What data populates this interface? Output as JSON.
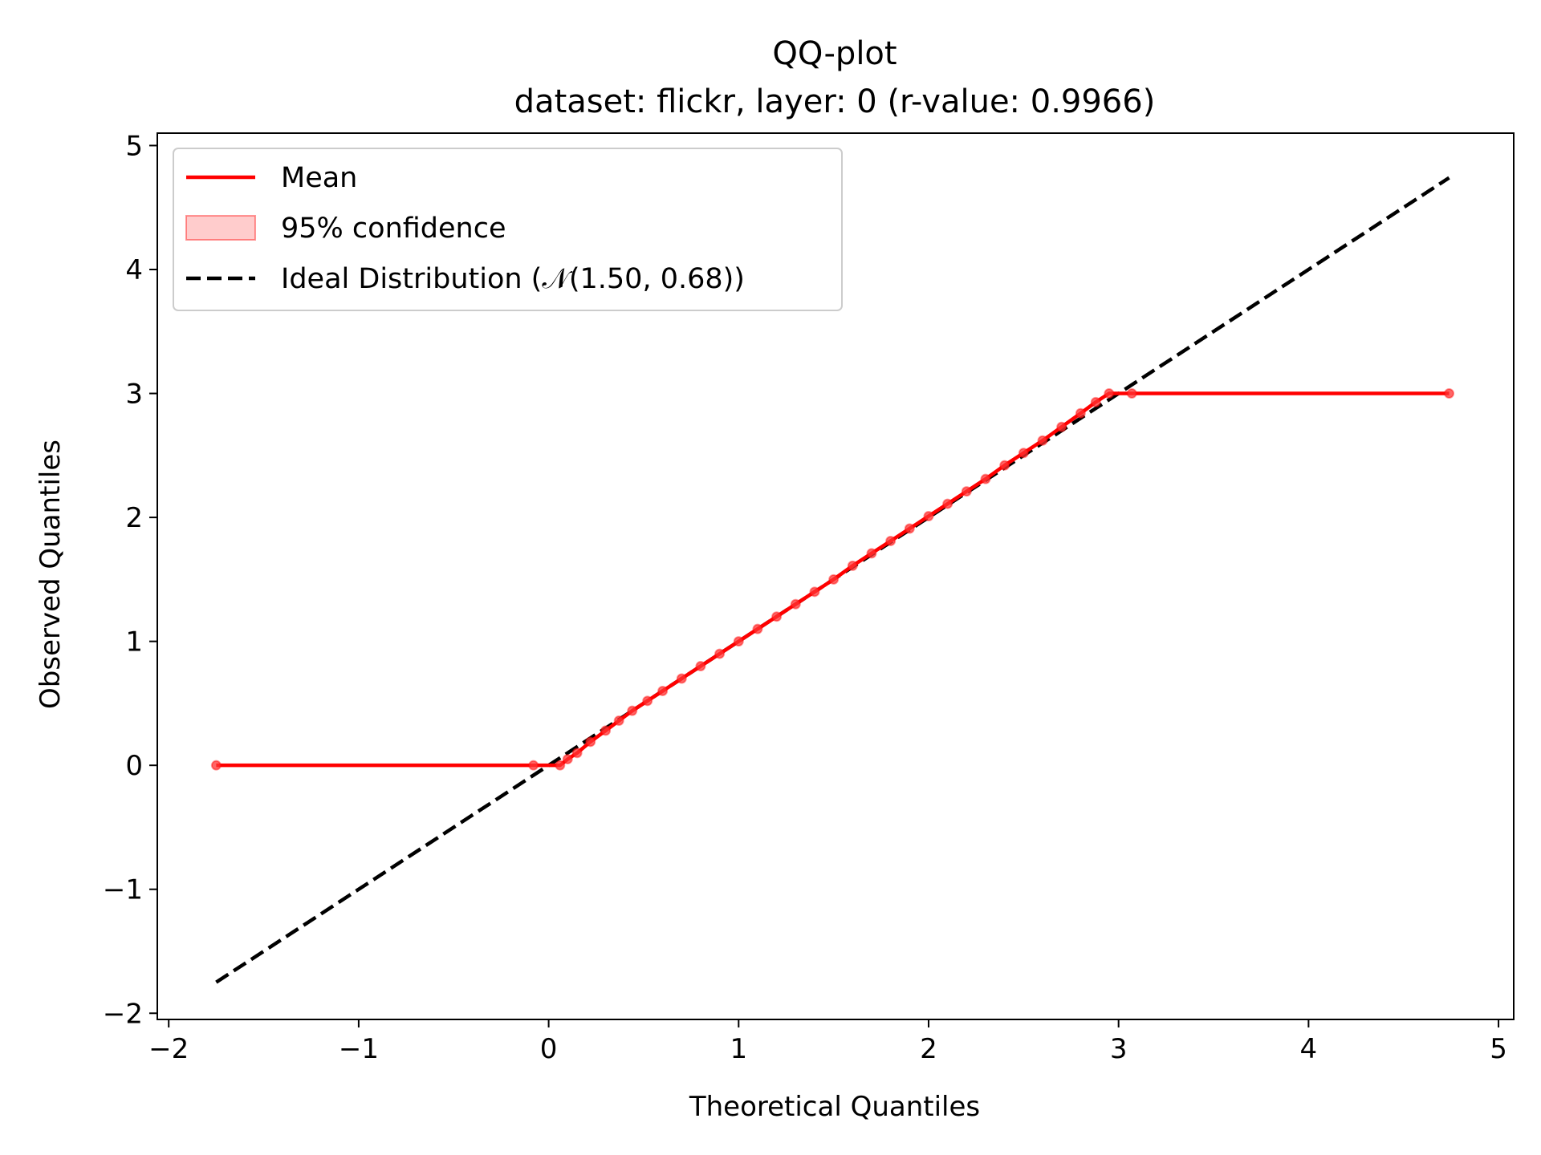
{
  "chart_data": {
    "type": "line",
    "title": "QQ-plot",
    "subtitle": "dataset: flickr, layer: 0 (r-value: 0.9966)",
    "xlabel": "Theoretical Quantiles",
    "ylabel": "Observed Quantiles",
    "xlim": [
      -2.06,
      5.08
    ],
    "ylim": [
      -2.05,
      5.1
    ],
    "xticks": [
      -2,
      -1,
      0,
      1,
      2,
      3,
      4,
      5
    ],
    "yticks": [
      -2,
      -1,
      0,
      1,
      2,
      3,
      4,
      5
    ],
    "xtick_labels": [
      "−2",
      "−1",
      "0",
      "1",
      "2",
      "3",
      "4",
      "5"
    ],
    "ytick_labels": [
      "−2",
      "−1",
      "0",
      "1",
      "2",
      "3",
      "4",
      "5"
    ],
    "grid": false,
    "legend_position": "top-left",
    "legend": [
      {
        "name": "Mean",
        "kind": "line",
        "color": "#ff0000"
      },
      {
        "name": "95% confidence",
        "kind": "patch",
        "color": "#ff0000"
      },
      {
        "name": "Ideal Distribution (𝒩(1.50, 0.68))",
        "kind": "dashed",
        "color": "#000000"
      }
    ],
    "series": [
      {
        "name": "Mean",
        "color": "#ff0000",
        "x": [
          -1.75,
          -0.08,
          0.06,
          0.1,
          0.15,
          0.22,
          0.3,
          0.37,
          0.44,
          0.52,
          0.6,
          0.7,
          0.8,
          0.9,
          1.0,
          1.1,
          1.2,
          1.3,
          1.4,
          1.5,
          1.6,
          1.7,
          1.8,
          1.9,
          2.0,
          2.1,
          2.2,
          2.3,
          2.4,
          2.5,
          2.6,
          2.7,
          2.8,
          2.88,
          2.95,
          3.07,
          4.74
        ],
        "y": [
          0.0,
          0.0,
          0.0,
          0.05,
          0.1,
          0.19,
          0.28,
          0.36,
          0.44,
          0.52,
          0.6,
          0.7,
          0.8,
          0.9,
          1.0,
          1.1,
          1.2,
          1.3,
          1.4,
          1.5,
          1.61,
          1.71,
          1.81,
          1.91,
          2.01,
          2.11,
          2.21,
          2.31,
          2.42,
          2.52,
          2.62,
          2.73,
          2.84,
          2.93,
          3.0,
          3.0,
          3.0
        ]
      },
      {
        "name": "Ideal Distribution",
        "color": "#000000",
        "style": "dashed",
        "x": [
          -1.75,
          4.74
        ],
        "y": [
          -1.75,
          4.74
        ]
      }
    ]
  }
}
